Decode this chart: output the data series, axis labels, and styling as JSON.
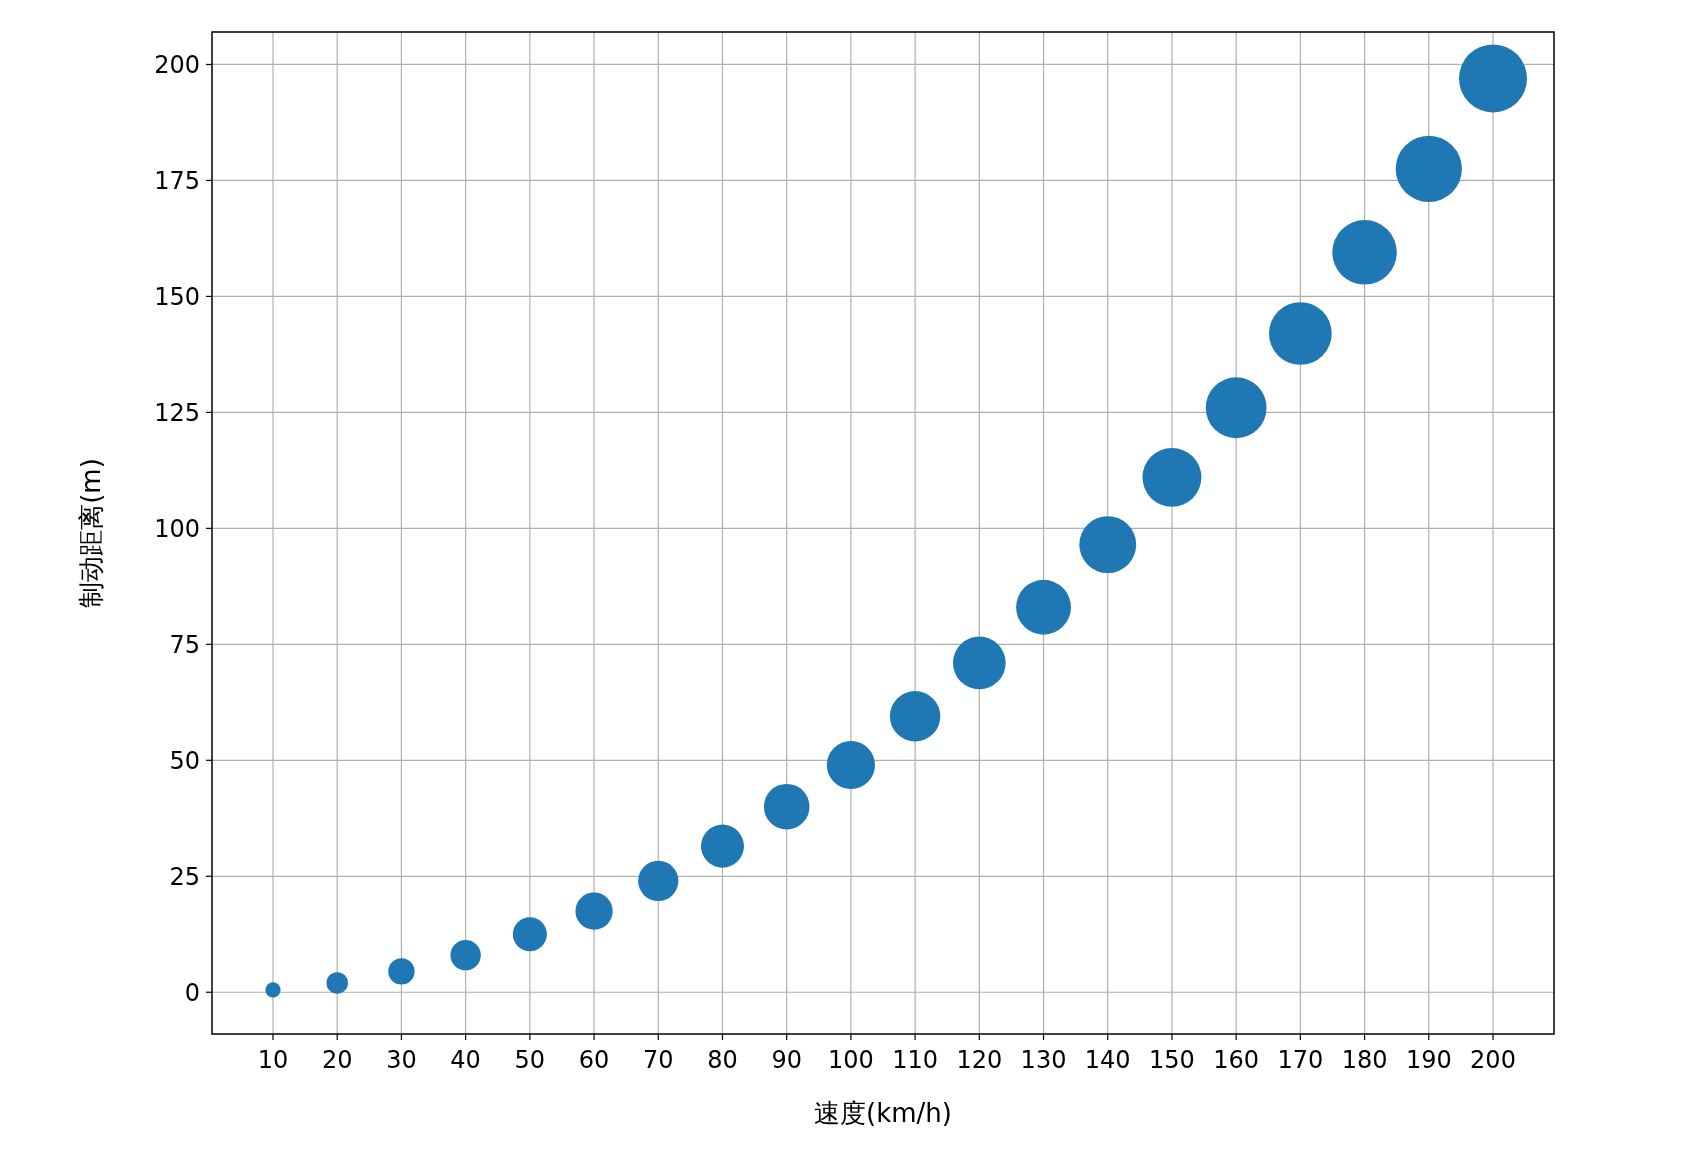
{
  "chart_data": {
    "type": "bubble",
    "xlabel": "速度(km/h)",
    "ylabel": "制动距离(m)",
    "x": [
      10,
      20,
      30,
      40,
      50,
      60,
      70,
      80,
      90,
      100,
      110,
      120,
      130,
      140,
      150,
      160,
      170,
      180,
      190,
      200
    ],
    "values": [
      0.5,
      2,
      4.5,
      8,
      12.5,
      17.5,
      24,
      31.5,
      40,
      49,
      59.5,
      71,
      83,
      96.5,
      111,
      126,
      142,
      159.5,
      177.5,
      197
    ],
    "sizes": [
      0.05,
      0.1,
      0.15,
      0.2,
      0.25,
      0.3,
      0.35,
      0.4,
      0.45,
      0.5,
      0.55,
      0.6,
      0.65,
      0.7,
      0.75,
      0.8,
      0.85,
      0.9,
      0.95,
      1
    ],
    "color": "#1f77b4",
    "marker": "circle",
    "grid": true,
    "xlim": [
      0.5,
      209.5
    ],
    "ylim": [
      -9,
      207
    ],
    "xticks": [
      10,
      20,
      30,
      40,
      50,
      60,
      70,
      80,
      90,
      100,
      110,
      120,
      130,
      140,
      150,
      160,
      170,
      180,
      190,
      200
    ],
    "yticks": [
      0,
      25,
      50,
      75,
      100,
      125,
      150,
      175,
      200
    ]
  }
}
